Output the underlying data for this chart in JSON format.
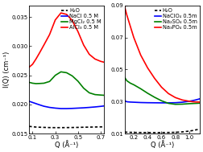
{
  "left": {
    "xlim": [
      0.07,
      0.73
    ],
    "ylim": [
      0.015,
      0.037
    ],
    "xlabel": "Q (Å⁻¹)",
    "ylabel": "I(Q) (cm⁻¹)",
    "yticks": [
      0.015,
      0.02,
      0.025,
      0.03,
      0.035
    ],
    "xticks": [
      0.1,
      0.3,
      0.5,
      0.7
    ],
    "series": [
      {
        "label": "H₂O",
        "color": "black",
        "linestyle": "dotted",
        "lw": 1.2,
        "x": [
          0.07,
          0.1,
          0.13,
          0.16,
          0.2,
          0.25,
          0.3,
          0.35,
          0.4,
          0.45,
          0.5,
          0.55,
          0.6,
          0.65,
          0.7,
          0.73
        ],
        "y": [
          0.01625,
          0.01618,
          0.01613,
          0.0161,
          0.01607,
          0.01604,
          0.01603,
          0.01603,
          0.01604,
          0.01605,
          0.01607,
          0.0161,
          0.01612,
          0.01614,
          0.01616,
          0.01617
        ]
      },
      {
        "label": "NaCl 0.5 M",
        "color": "blue",
        "linestyle": "solid",
        "lw": 1.2,
        "x": [
          0.07,
          0.1,
          0.13,
          0.16,
          0.2,
          0.25,
          0.3,
          0.35,
          0.4,
          0.45,
          0.5,
          0.55,
          0.6,
          0.65,
          0.7,
          0.73
        ],
        "y": [
          0.02055,
          0.02035,
          0.02015,
          0.01995,
          0.0197,
          0.0195,
          0.01938,
          0.0193,
          0.0193,
          0.01933,
          0.01938,
          0.01943,
          0.0195,
          0.01958,
          0.01968,
          0.01975
        ]
      },
      {
        "label": "MgCl₂ 0.5 M",
        "color": "green",
        "linestyle": "solid",
        "lw": 1.2,
        "x": [
          0.07,
          0.1,
          0.13,
          0.16,
          0.2,
          0.25,
          0.3,
          0.35,
          0.4,
          0.45,
          0.5,
          0.55,
          0.6,
          0.65,
          0.7,
          0.73
        ],
        "y": [
          0.0238,
          0.02365,
          0.02358,
          0.0236,
          0.02365,
          0.02395,
          0.025,
          0.0256,
          0.02545,
          0.0249,
          0.024,
          0.0228,
          0.022,
          0.0217,
          0.02162,
          0.02158
        ]
      },
      {
        "label": "AlCl₃ 0.5 M",
        "color": "red",
        "linestyle": "solid",
        "lw": 1.2,
        "x": [
          0.07,
          0.1,
          0.13,
          0.16,
          0.2,
          0.25,
          0.3,
          0.35,
          0.4,
          0.45,
          0.5,
          0.55,
          0.6,
          0.65,
          0.7,
          0.73
        ],
        "y": [
          0.0264,
          0.0269,
          0.0278,
          0.0288,
          0.0302,
          0.032,
          0.0345,
          0.0357,
          0.03545,
          0.0344,
          0.0325,
          0.0302,
          0.0286,
          0.0278,
          0.0274,
          0.02725
        ]
      }
    ]
  },
  "right": {
    "xlim": [
      0.07,
      1.15
    ],
    "ylim": [
      0.01,
      0.09
    ],
    "xlabel": "Q (Å⁻¹)",
    "ylabel": "",
    "yticks": [
      0.01,
      0.03,
      0.05,
      0.07,
      0.09
    ],
    "xticks": [
      0.2,
      0.4,
      0.6,
      0.8,
      1.0
    ],
    "series": [
      {
        "label": "H₂O",
        "color": "black",
        "linestyle": "dotted",
        "lw": 1.2,
        "x": [
          0.07,
          0.1,
          0.15,
          0.2,
          0.3,
          0.4,
          0.5,
          0.6,
          0.7,
          0.8,
          0.9,
          1.0,
          1.05,
          1.1,
          1.15
        ],
        "y": [
          0.011,
          0.0109,
          0.0108,
          0.01075,
          0.0107,
          0.01068,
          0.01067,
          0.01068,
          0.01072,
          0.01082,
          0.0111,
          0.0116,
          0.01195,
          0.0124,
          0.0128
        ]
      },
      {
        "label": "NaClO₄ 0.5m",
        "color": "blue",
        "linestyle": "solid",
        "lw": 1.2,
        "x": [
          0.07,
          0.1,
          0.15,
          0.2,
          0.3,
          0.4,
          0.5,
          0.6,
          0.7,
          0.8,
          0.9,
          1.0,
          1.05,
          1.1,
          1.15
        ],
        "y": [
          0.0305,
          0.0299,
          0.0297,
          0.0296,
          0.0294,
          0.0293,
          0.02925,
          0.0292,
          0.0292,
          0.0293,
          0.0296,
          0.0302,
          0.0306,
          0.0311,
          0.0317
        ]
      },
      {
        "label": "Na₂SO₄ 0.5m",
        "color": "green",
        "linestyle": "solid",
        "lw": 1.2,
        "x": [
          0.07,
          0.1,
          0.15,
          0.2,
          0.3,
          0.4,
          0.5,
          0.6,
          0.7,
          0.8,
          0.9,
          1.0,
          1.05,
          1.1,
          1.15
        ],
        "y": [
          0.045,
          0.043,
          0.0415,
          0.0405,
          0.038,
          0.0352,
          0.0327,
          0.0305,
          0.0289,
          0.0283,
          0.0284,
          0.0287,
          0.0288,
          0.0289,
          0.029
        ]
      },
      {
        "label": "Na₃PO₄ 0.5m",
        "color": "red",
        "linestyle": "solid",
        "lw": 1.2,
        "x": [
          0.07,
          0.1,
          0.15,
          0.2,
          0.3,
          0.4,
          0.5,
          0.6,
          0.7,
          0.8,
          0.9,
          1.0,
          1.05,
          1.1,
          1.15
        ],
        "y": [
          0.089,
          0.084,
          0.077,
          0.07,
          0.059,
          0.051,
          0.0445,
          0.039,
          0.035,
          0.0325,
          0.031,
          0.0302,
          0.0299,
          0.02975,
          0.0297
        ]
      }
    ]
  },
  "background_color": "white",
  "tick_fontsize": 5.0,
  "label_fontsize": 6.0,
  "legend_fontsize": 4.8
}
